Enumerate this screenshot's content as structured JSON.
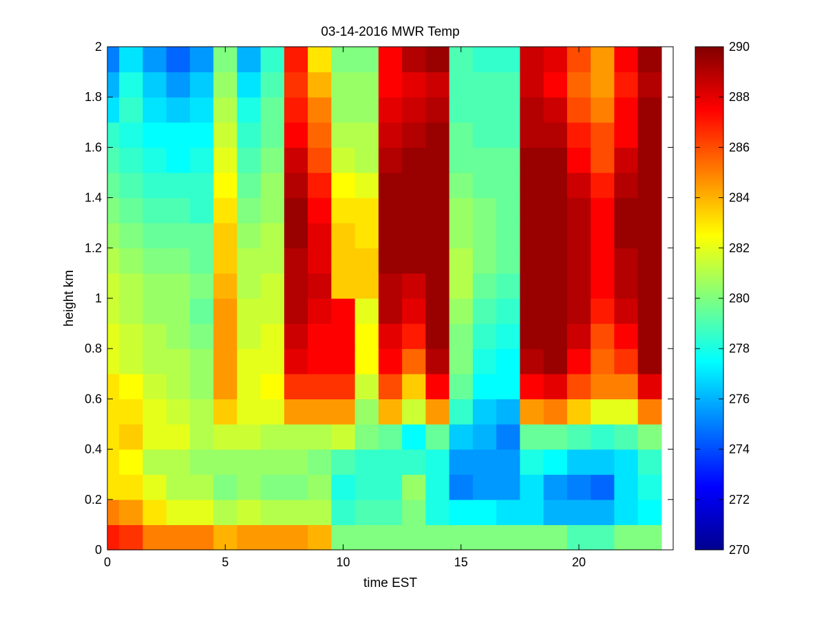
{
  "chart_data": {
    "type": "heatmap",
    "title": "03-14-2016 MWR Temp",
    "xlabel": "time EST",
    "ylabel": "height km",
    "xlim": [
      0,
      24
    ],
    "ylim": [
      0,
      2
    ],
    "xticks": [
      0,
      5,
      10,
      15,
      20
    ],
    "yticks": [
      0,
      0.2,
      0.4,
      0.6,
      0.8,
      1,
      1.2,
      1.4,
      1.6,
      1.8,
      2
    ],
    "colorbar": {
      "min": 270,
      "max": 290,
      "ticks": [
        270,
        272,
        274,
        276,
        278,
        280,
        282,
        284,
        286,
        288,
        290
      ]
    },
    "x": [
      0,
      1,
      2,
      3,
      4,
      5,
      6,
      7,
      8,
      9,
      10,
      11,
      12,
      13,
      14,
      15,
      16,
      17,
      18,
      19,
      20,
      21,
      22,
      23
    ],
    "y": [
      0,
      0.1,
      0.2,
      0.3,
      0.4,
      0.5,
      0.6,
      0.7,
      0.8,
      0.9,
      1.0,
      1.1,
      1.2,
      1.3,
      1.4,
      1.5,
      1.6,
      1.7,
      1.8,
      1.9,
      2.0
    ],
    "z": [
      [
        287,
        286.5,
        285,
        285,
        285,
        284,
        284.5,
        284.5,
        284.5,
        284,
        280,
        280,
        280,
        280,
        280,
        280,
        280,
        280,
        280,
        280,
        279,
        279,
        280,
        280
      ],
      [
        285,
        284.5,
        283,
        282,
        282,
        281,
        281.5,
        281,
        281,
        281,
        278.5,
        279,
        279,
        280,
        278,
        277.5,
        277.5,
        277,
        277,
        276,
        276,
        276,
        277,
        277.5
      ],
      [
        283,
        283,
        282,
        281,
        281,
        280,
        280.5,
        280,
        280,
        280.5,
        278,
        278.5,
        278.5,
        280.5,
        278,
        275,
        275.5,
        275.5,
        277,
        275.5,
        275,
        274.5,
        277,
        278
      ],
      [
        283,
        282.5,
        281,
        281,
        280.5,
        280.5,
        280.5,
        280.5,
        280.5,
        280,
        279,
        278.5,
        278.5,
        278.5,
        278,
        275.5,
        275.5,
        275.5,
        278,
        277.5,
        276.5,
        276.5,
        277,
        278.5
      ],
      [
        283,
        283.5,
        282,
        282,
        281,
        281.5,
        281.5,
        281,
        281,
        281,
        281.5,
        280,
        279.5,
        277.5,
        279.5,
        276.5,
        276,
        275,
        279.5,
        279.5,
        279,
        278.5,
        279,
        280
      ],
      [
        283,
        283,
        282,
        281.5,
        281,
        283.5,
        282,
        282,
        284.5,
        284.5,
        284.5,
        280.5,
        284,
        281.5,
        284.5,
        278.5,
        276.5,
        276,
        284.5,
        285,
        283.5,
        282,
        282,
        285
      ],
      [
        283,
        282.5,
        281.5,
        281,
        280.5,
        284.5,
        282,
        282.5,
        286.5,
        286.5,
        286.5,
        281.5,
        286,
        283.5,
        287.5,
        279.5,
        277.5,
        277.5,
        287.5,
        288,
        286,
        285,
        285,
        288
      ],
      [
        282,
        281.5,
        281,
        281,
        280.5,
        284.5,
        282,
        282,
        288,
        287.5,
        287.5,
        282.5,
        287.5,
        285.5,
        289,
        280,
        278,
        277.5,
        289,
        289.5,
        287.5,
        285.5,
        286.5,
        289.5
      ],
      [
        282,
        281.5,
        281,
        280.5,
        280,
        284.5,
        281.5,
        282,
        288.5,
        287.5,
        287.5,
        282.5,
        288,
        287,
        289.5,
        280,
        278.5,
        278,
        289.5,
        289.5,
        288.5,
        286,
        287.5,
        289.5
      ],
      [
        281.5,
        281,
        280.5,
        280.5,
        279.5,
        284.5,
        281.5,
        281.5,
        289,
        288,
        287.5,
        282,
        289,
        288,
        289.5,
        280.5,
        279,
        278.5,
        289.5,
        289.5,
        289,
        287,
        288.5,
        289.5
      ],
      [
        281.5,
        281,
        280.5,
        280.5,
        280,
        284,
        281,
        281.5,
        289,
        288.5,
        283.5,
        283.5,
        289,
        288.5,
        289.5,
        281,
        279.5,
        279,
        289.5,
        289.5,
        289,
        287.5,
        289,
        289.5
      ],
      [
        281,
        280.5,
        280,
        280,
        279.5,
        283.5,
        281,
        281,
        289,
        288,
        283.5,
        283.5,
        289.5,
        289.5,
        289.5,
        281,
        280,
        279.5,
        289.5,
        289.5,
        289,
        287.5,
        289,
        289.5
      ],
      [
        280.5,
        280,
        279.5,
        279.5,
        279.5,
        283.5,
        280.5,
        281,
        289.5,
        288,
        283.5,
        283,
        289.5,
        289.5,
        289.5,
        280.5,
        280,
        279.5,
        289.5,
        289.5,
        289,
        287.5,
        289.5,
        289.5
      ],
      [
        280,
        279.5,
        279,
        279,
        278.5,
        283,
        280,
        280.5,
        289.5,
        287.5,
        283,
        283,
        289.5,
        289.5,
        289.5,
        280.5,
        280,
        279.5,
        289.5,
        289.5,
        289,
        287.5,
        289.5,
        289.5
      ],
      [
        279.5,
        279,
        278.5,
        278.5,
        278.5,
        282.5,
        279.5,
        280.5,
        289,
        287,
        282.5,
        282,
        289.5,
        289.5,
        289.5,
        280,
        279.5,
        279.5,
        289.5,
        289.5,
        288.5,
        287,
        289,
        289.5
      ],
      [
        279,
        278.5,
        278,
        277.5,
        278,
        282,
        279,
        280,
        288.5,
        286,
        281.5,
        281,
        289,
        289.5,
        289.5,
        279.5,
        279.5,
        279.5,
        289.5,
        289.5,
        287.5,
        286,
        288.5,
        289.5
      ],
      [
        278.5,
        278,
        277.5,
        277.5,
        277.5,
        281.5,
        278.5,
        279.5,
        287.5,
        285.5,
        281,
        281,
        288.5,
        289,
        289.5,
        279.5,
        279,
        279,
        289,
        289,
        287,
        286,
        287.5,
        289.5
      ],
      [
        277,
        278.5,
        277,
        276.5,
        277,
        281,
        278,
        279.5,
        287,
        285,
        280.5,
        280.5,
        288,
        288.5,
        289,
        279,
        279,
        279,
        289,
        288.5,
        286,
        285,
        287.5,
        289.5
      ],
      [
        276,
        278,
        276.5,
        275.5,
        276.5,
        280.5,
        277,
        279,
        286.5,
        284,
        280.5,
        280.5,
        287.5,
        288,
        288.5,
        279,
        279,
        279,
        288.5,
        287.5,
        285.5,
        284.5,
        287,
        289
      ],
      [
        275,
        277,
        275.5,
        274.5,
        275.5,
        280,
        276,
        278.5,
        287,
        283,
        280,
        280,
        287.5,
        289,
        289.5,
        279,
        278.5,
        278.5,
        288.5,
        288,
        286,
        284.5,
        287.5,
        289.5
      ]
    ]
  }
}
